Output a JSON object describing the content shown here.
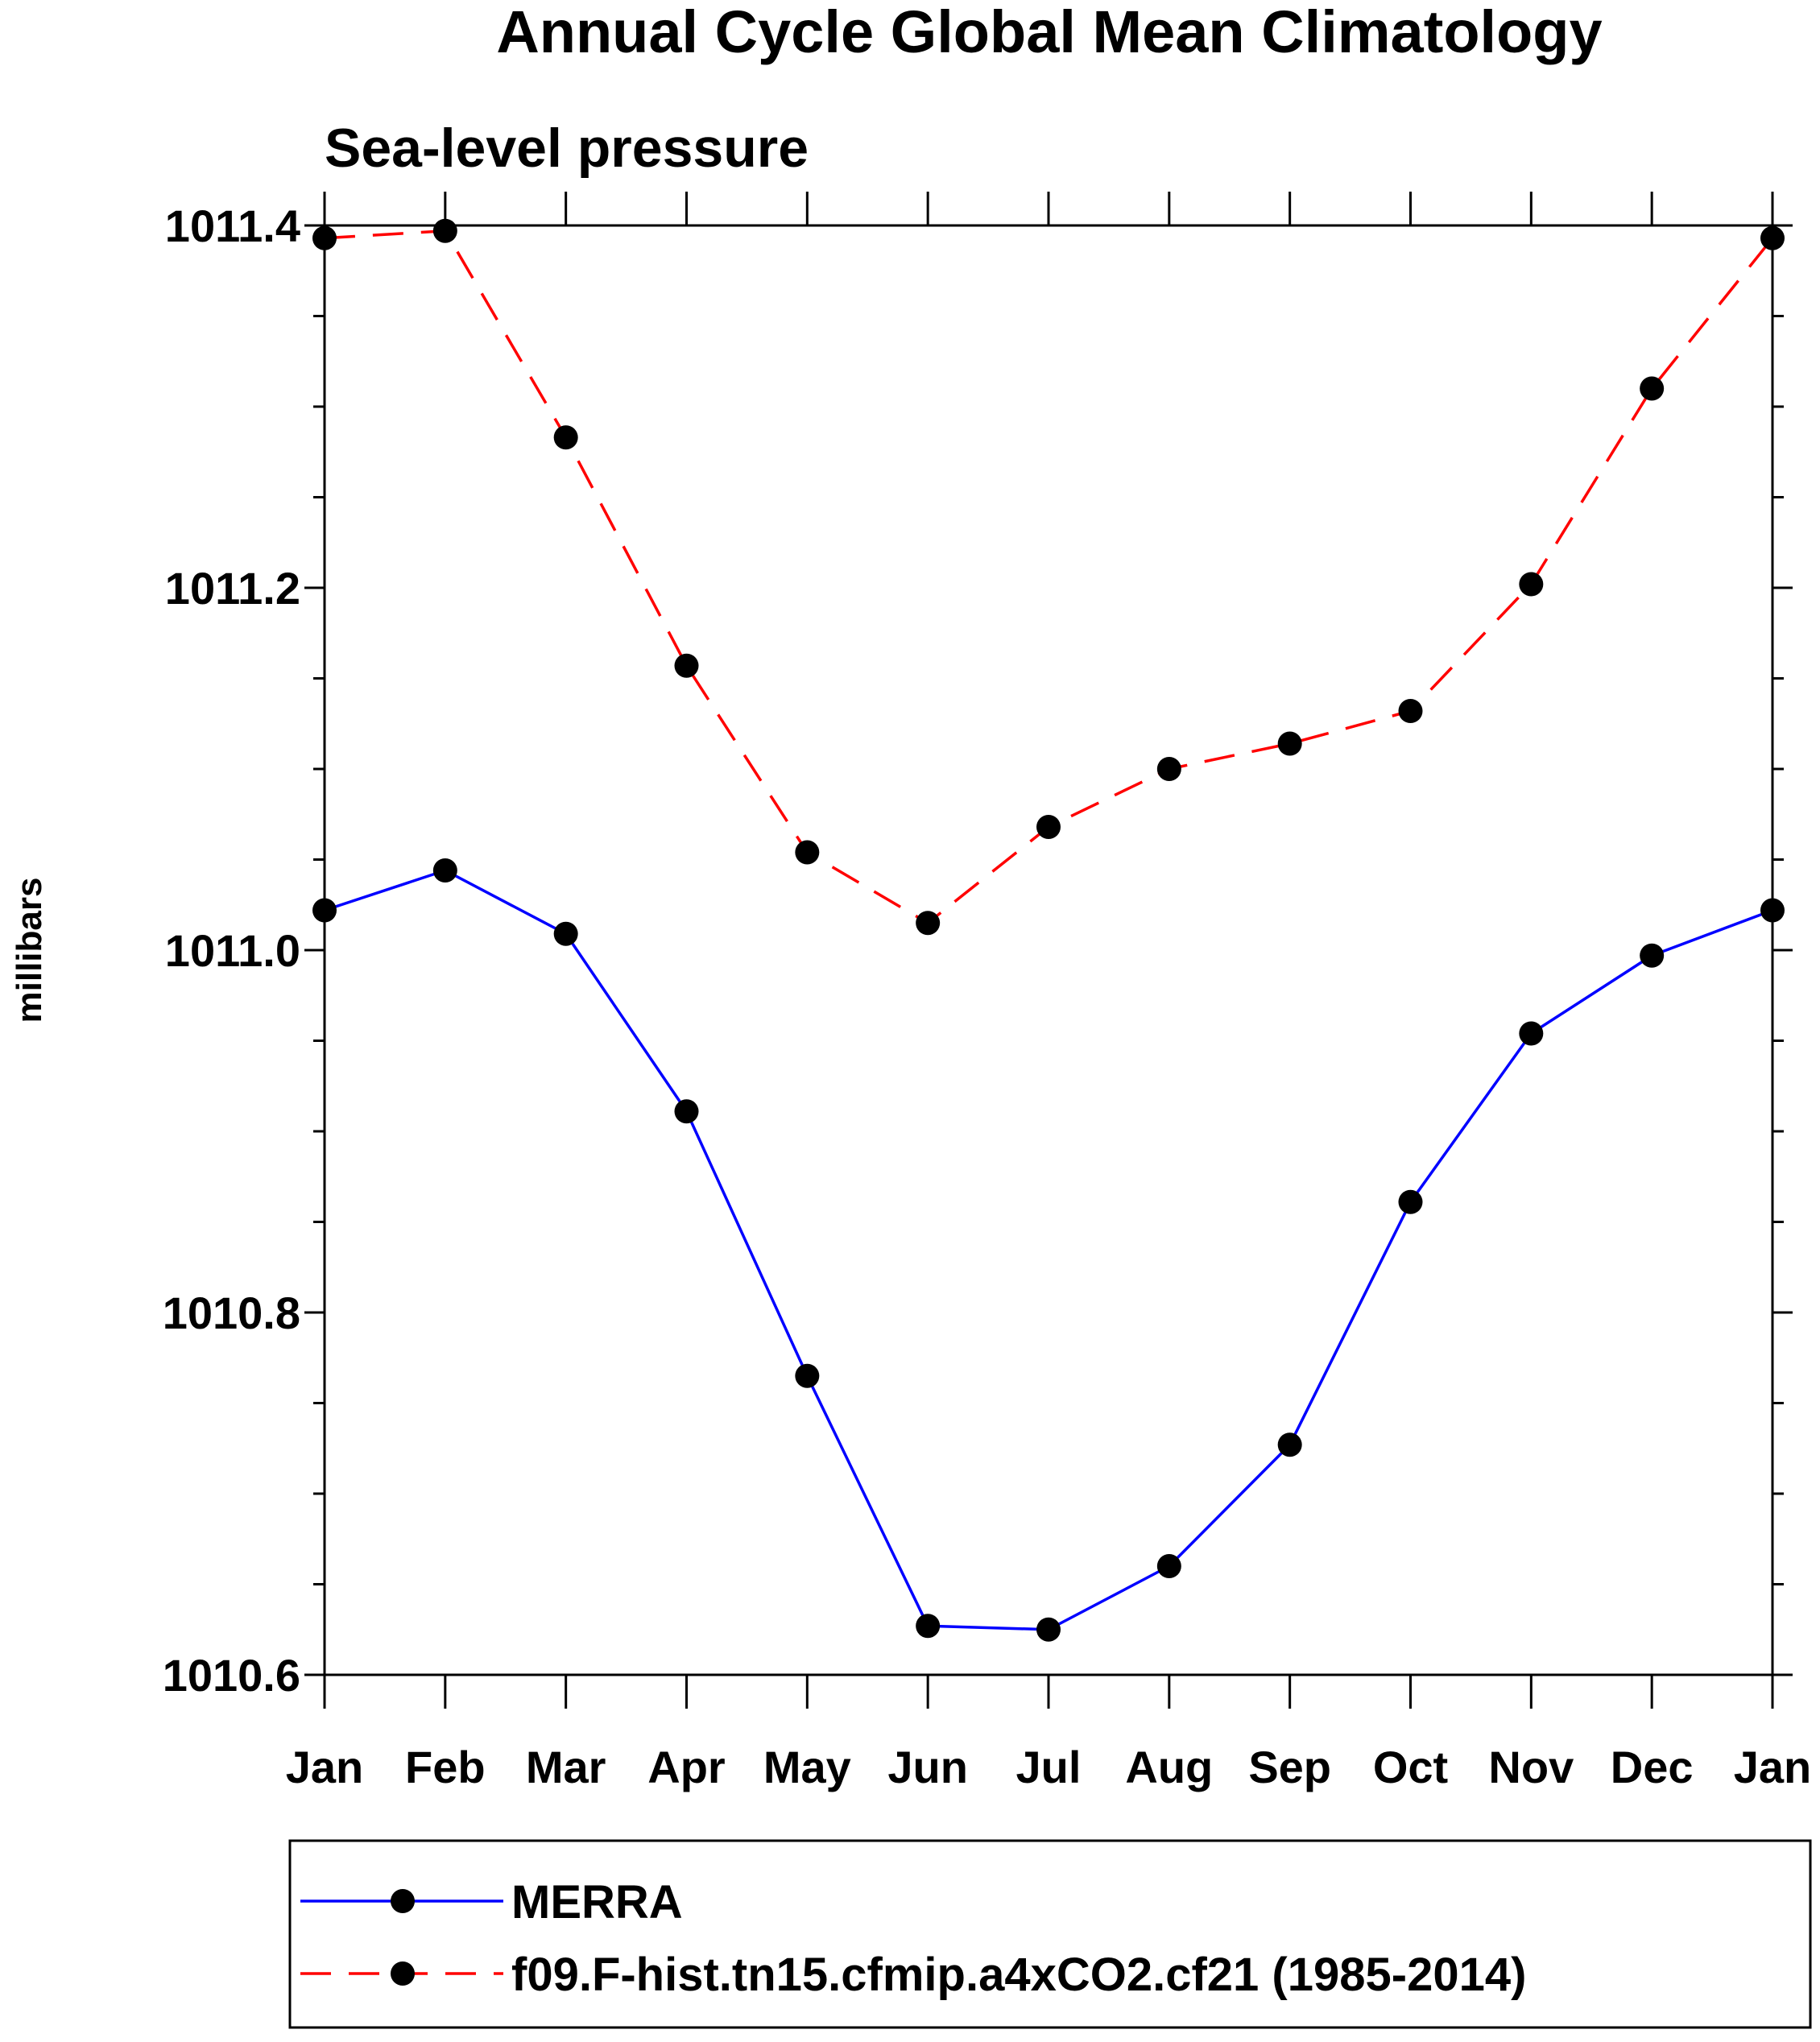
{
  "chart_data": {
    "type": "line",
    "title": "Annual Cycle Global Mean Climatology",
    "subtitle": "Sea-level pressure",
    "xlabel": "",
    "ylabel": "millibars",
    "categories": [
      "Jan",
      "Feb",
      "Mar",
      "Apr",
      "May",
      "Jun",
      "Jul",
      "Aug",
      "Sep",
      "Oct",
      "Nov",
      "Dec",
      "Jan"
    ],
    "ylim": [
      1010.6,
      1011.4
    ],
    "yticks": [
      1010.6,
      1010.8,
      1011.0,
      1011.2,
      1011.4
    ],
    "ytick_labels": [
      "1010.6",
      "1010.8",
      "1011.0",
      "1011.2",
      "1011.4"
    ],
    "yminor_step": 0.05,
    "grid": false,
    "legend_position": "bottom",
    "series": [
      {
        "name": "MERRA",
        "color": "#0000ff",
        "line_style": "solid",
        "marker": "circle",
        "values": [
          1011.022,
          1011.044,
          1011.009,
          1010.911,
          1010.765,
          1010.627,
          1010.625,
          1010.66,
          1010.727,
          1010.861,
          1010.954,
          1010.997,
          1011.022
        ]
      },
      {
        "name": "f09.F-hist.tn15.cfmip.a4xCO2.cf21 (1985-2014)",
        "color": "#ff0000",
        "line_style": "dashed",
        "marker": "circle",
        "values": [
          1011.393,
          1011.397,
          1011.283,
          1011.157,
          1011.054,
          1011.015,
          1011.068,
          1011.1,
          1011.114,
          1011.132,
          1011.202,
          1011.31,
          1011.393
        ]
      }
    ]
  }
}
